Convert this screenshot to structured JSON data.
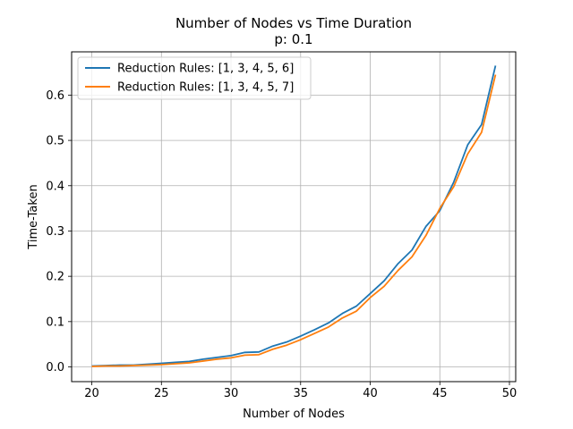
{
  "chart_data": {
    "type": "line",
    "title": "Number of Nodes vs Time Duration",
    "subtitle": "p: 0.1",
    "xlabel": "Number of Nodes",
    "ylabel": "Time-Taken",
    "xlim": [
      18.55,
      50.45
    ],
    "ylim": [
      -0.0325,
      0.6955
    ],
    "xticks": [
      20,
      25,
      30,
      35,
      40,
      45,
      50
    ],
    "yticks": [
      0.0,
      0.1,
      0.2,
      0.3,
      0.4,
      0.5,
      0.6
    ],
    "xtick_labels": [
      "20",
      "25",
      "30",
      "35",
      "40",
      "45",
      "50"
    ],
    "ytick_labels": [
      "0.0",
      "0.1",
      "0.2",
      "0.3",
      "0.4",
      "0.5",
      "0.6"
    ],
    "grid": true,
    "legend_position": "top-left",
    "x": [
      20,
      21,
      22,
      23,
      24,
      25,
      26,
      27,
      28,
      29,
      30,
      31,
      32,
      33,
      34,
      35,
      36,
      37,
      38,
      39,
      40,
      41,
      42,
      43,
      44,
      45,
      46,
      47,
      48,
      49
    ],
    "series": [
      {
        "name": "Reduction Rules: [1, 3, 4, 5, 6]",
        "color": "#1f77b4",
        "values": [
          0.002,
          0.003,
          0.004,
          0.004,
          0.006,
          0.008,
          0.01,
          0.012,
          0.017,
          0.021,
          0.025,
          0.032,
          0.033,
          0.046,
          0.055,
          0.068,
          0.082,
          0.097,
          0.118,
          0.134,
          0.162,
          0.19,
          0.228,
          0.258,
          0.31,
          0.345,
          0.408,
          0.49,
          0.535,
          0.665
        ]
      },
      {
        "name": "Reduction Rules: [1, 3, 4, 5, 7]",
        "color": "#ff7f0e",
        "values": [
          0.001,
          0.002,
          0.002,
          0.003,
          0.004,
          0.005,
          0.007,
          0.009,
          0.013,
          0.017,
          0.02,
          0.026,
          0.027,
          0.039,
          0.048,
          0.06,
          0.074,
          0.088,
          0.108,
          0.123,
          0.153,
          0.178,
          0.213,
          0.243,
          0.29,
          0.35,
          0.398,
          0.47,
          0.518,
          0.645
        ]
      }
    ]
  }
}
